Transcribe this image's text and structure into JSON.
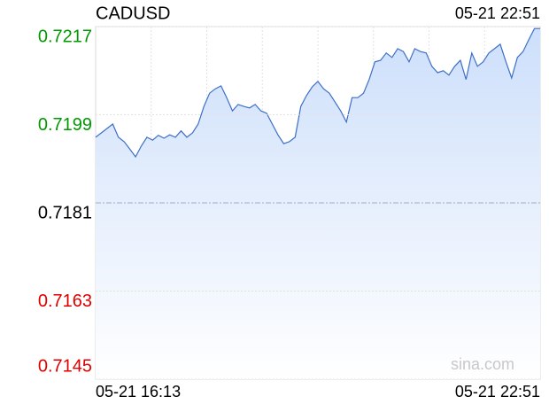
{
  "chart_data": {
    "type": "line",
    "title": "CADUSD",
    "timestamp": "05-21 22:51",
    "watermark": "sina.com",
    "color": "#3d6fc7",
    "area_color": "#cddffb",
    "categories": [
      "05-21 16:13",
      null,
      null,
      null,
      null,
      null,
      null,
      null,
      null,
      null,
      null,
      null,
      null,
      null,
      null,
      null,
      null,
      null,
      null,
      null,
      null,
      null,
      null,
      null,
      null,
      null,
      null,
      null,
      null,
      null,
      null,
      null,
      null,
      null,
      null,
      null,
      null,
      null,
      null,
      null,
      null,
      null,
      null,
      null,
      null,
      null,
      null,
      null,
      null,
      null,
      null,
      null,
      null,
      null,
      null,
      null,
      null,
      null,
      null,
      null,
      null,
      null,
      null,
      null,
      null,
      null,
      null,
      null,
      null,
      null,
      null,
      null,
      null,
      null,
      null,
      null,
      null,
      null,
      "05-21 22:51"
    ],
    "values": [
      0.71944,
      0.71953,
      0.71962,
      0.71971,
      0.71944,
      0.71935,
      0.7192,
      0.71904,
      0.71926,
      0.71944,
      0.71938,
      0.71948,
      0.71942,
      0.71949,
      0.71944,
      0.71957,
      0.71944,
      0.71953,
      0.71971,
      0.72007,
      0.72034,
      0.72043,
      0.72049,
      0.72025,
      0.71998,
      0.72011,
      0.72007,
      0.72004,
      0.72011,
      0.71998,
      0.71993,
      0.71971,
      0.71949,
      0.71931,
      0.71935,
      0.71944,
      0.72007,
      0.72029,
      0.72047,
      0.72058,
      0.72043,
      0.72034,
      0.72016,
      0.71998,
      0.71975,
      0.72025,
      0.72025,
      0.72034,
      0.72062,
      0.72098,
      0.72101,
      0.72116,
      0.72107,
      0.72125,
      0.72119,
      0.72098,
      0.72125,
      0.72119,
      0.72116,
      0.72089,
      0.72076,
      0.7208,
      0.72071,
      0.72089,
      0.72101,
      0.72062,
      0.72116,
      0.72089,
      0.72098,
      0.72116,
      0.72125,
      0.72134,
      0.72098,
      0.72065,
      0.72107,
      0.72119,
      0.72143,
      0.72166,
      0.72166
    ],
    "ylim": [
      0.7145,
      0.7217
    ],
    "yticks": [
      0.7145,
      0.7163,
      0.7181,
      0.7199,
      0.7217
    ],
    "ytick_colors": [
      "#e00000",
      "#e00000",
      "#000000",
      "#009900",
      "#009900"
    ],
    "x_grid_divisions": 8,
    "grid": true
  }
}
